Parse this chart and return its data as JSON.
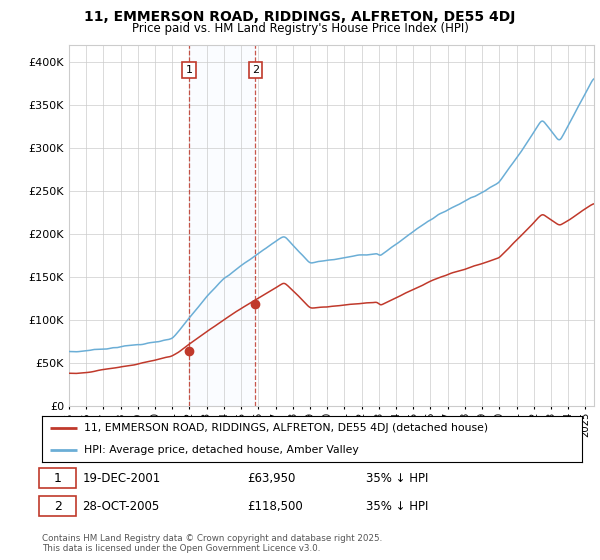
{
  "title": "11, EMMERSON ROAD, RIDDINGS, ALFRETON, DE55 4DJ",
  "subtitle": "Price paid vs. HM Land Registry's House Price Index (HPI)",
  "hpi_color": "#6baed6",
  "price_color": "#c0392b",
  "sale1_date": "19-DEC-2001",
  "sale1_price": 63950,
  "sale1_label": "1",
  "sale1_year": 2001.97,
  "sale2_date": "28-OCT-2005",
  "sale2_price": 118500,
  "sale2_label": "2",
  "sale2_year": 2005.83,
  "legend_line1": "11, EMMERSON ROAD, RIDDINGS, ALFRETON, DE55 4DJ (detached house)",
  "legend_line2": "HPI: Average price, detached house, Amber Valley",
  "footer": "Contains HM Land Registry data © Crown copyright and database right 2025.\nThis data is licensed under the Open Government Licence v3.0.",
  "ylim_max": 420000,
  "ylim_min": 0,
  "xlim_min": 1995,
  "xlim_max": 2025.5,
  "background": "#ffffff",
  "grid_color": "#cccccc",
  "shade_color": "#ddeeff"
}
